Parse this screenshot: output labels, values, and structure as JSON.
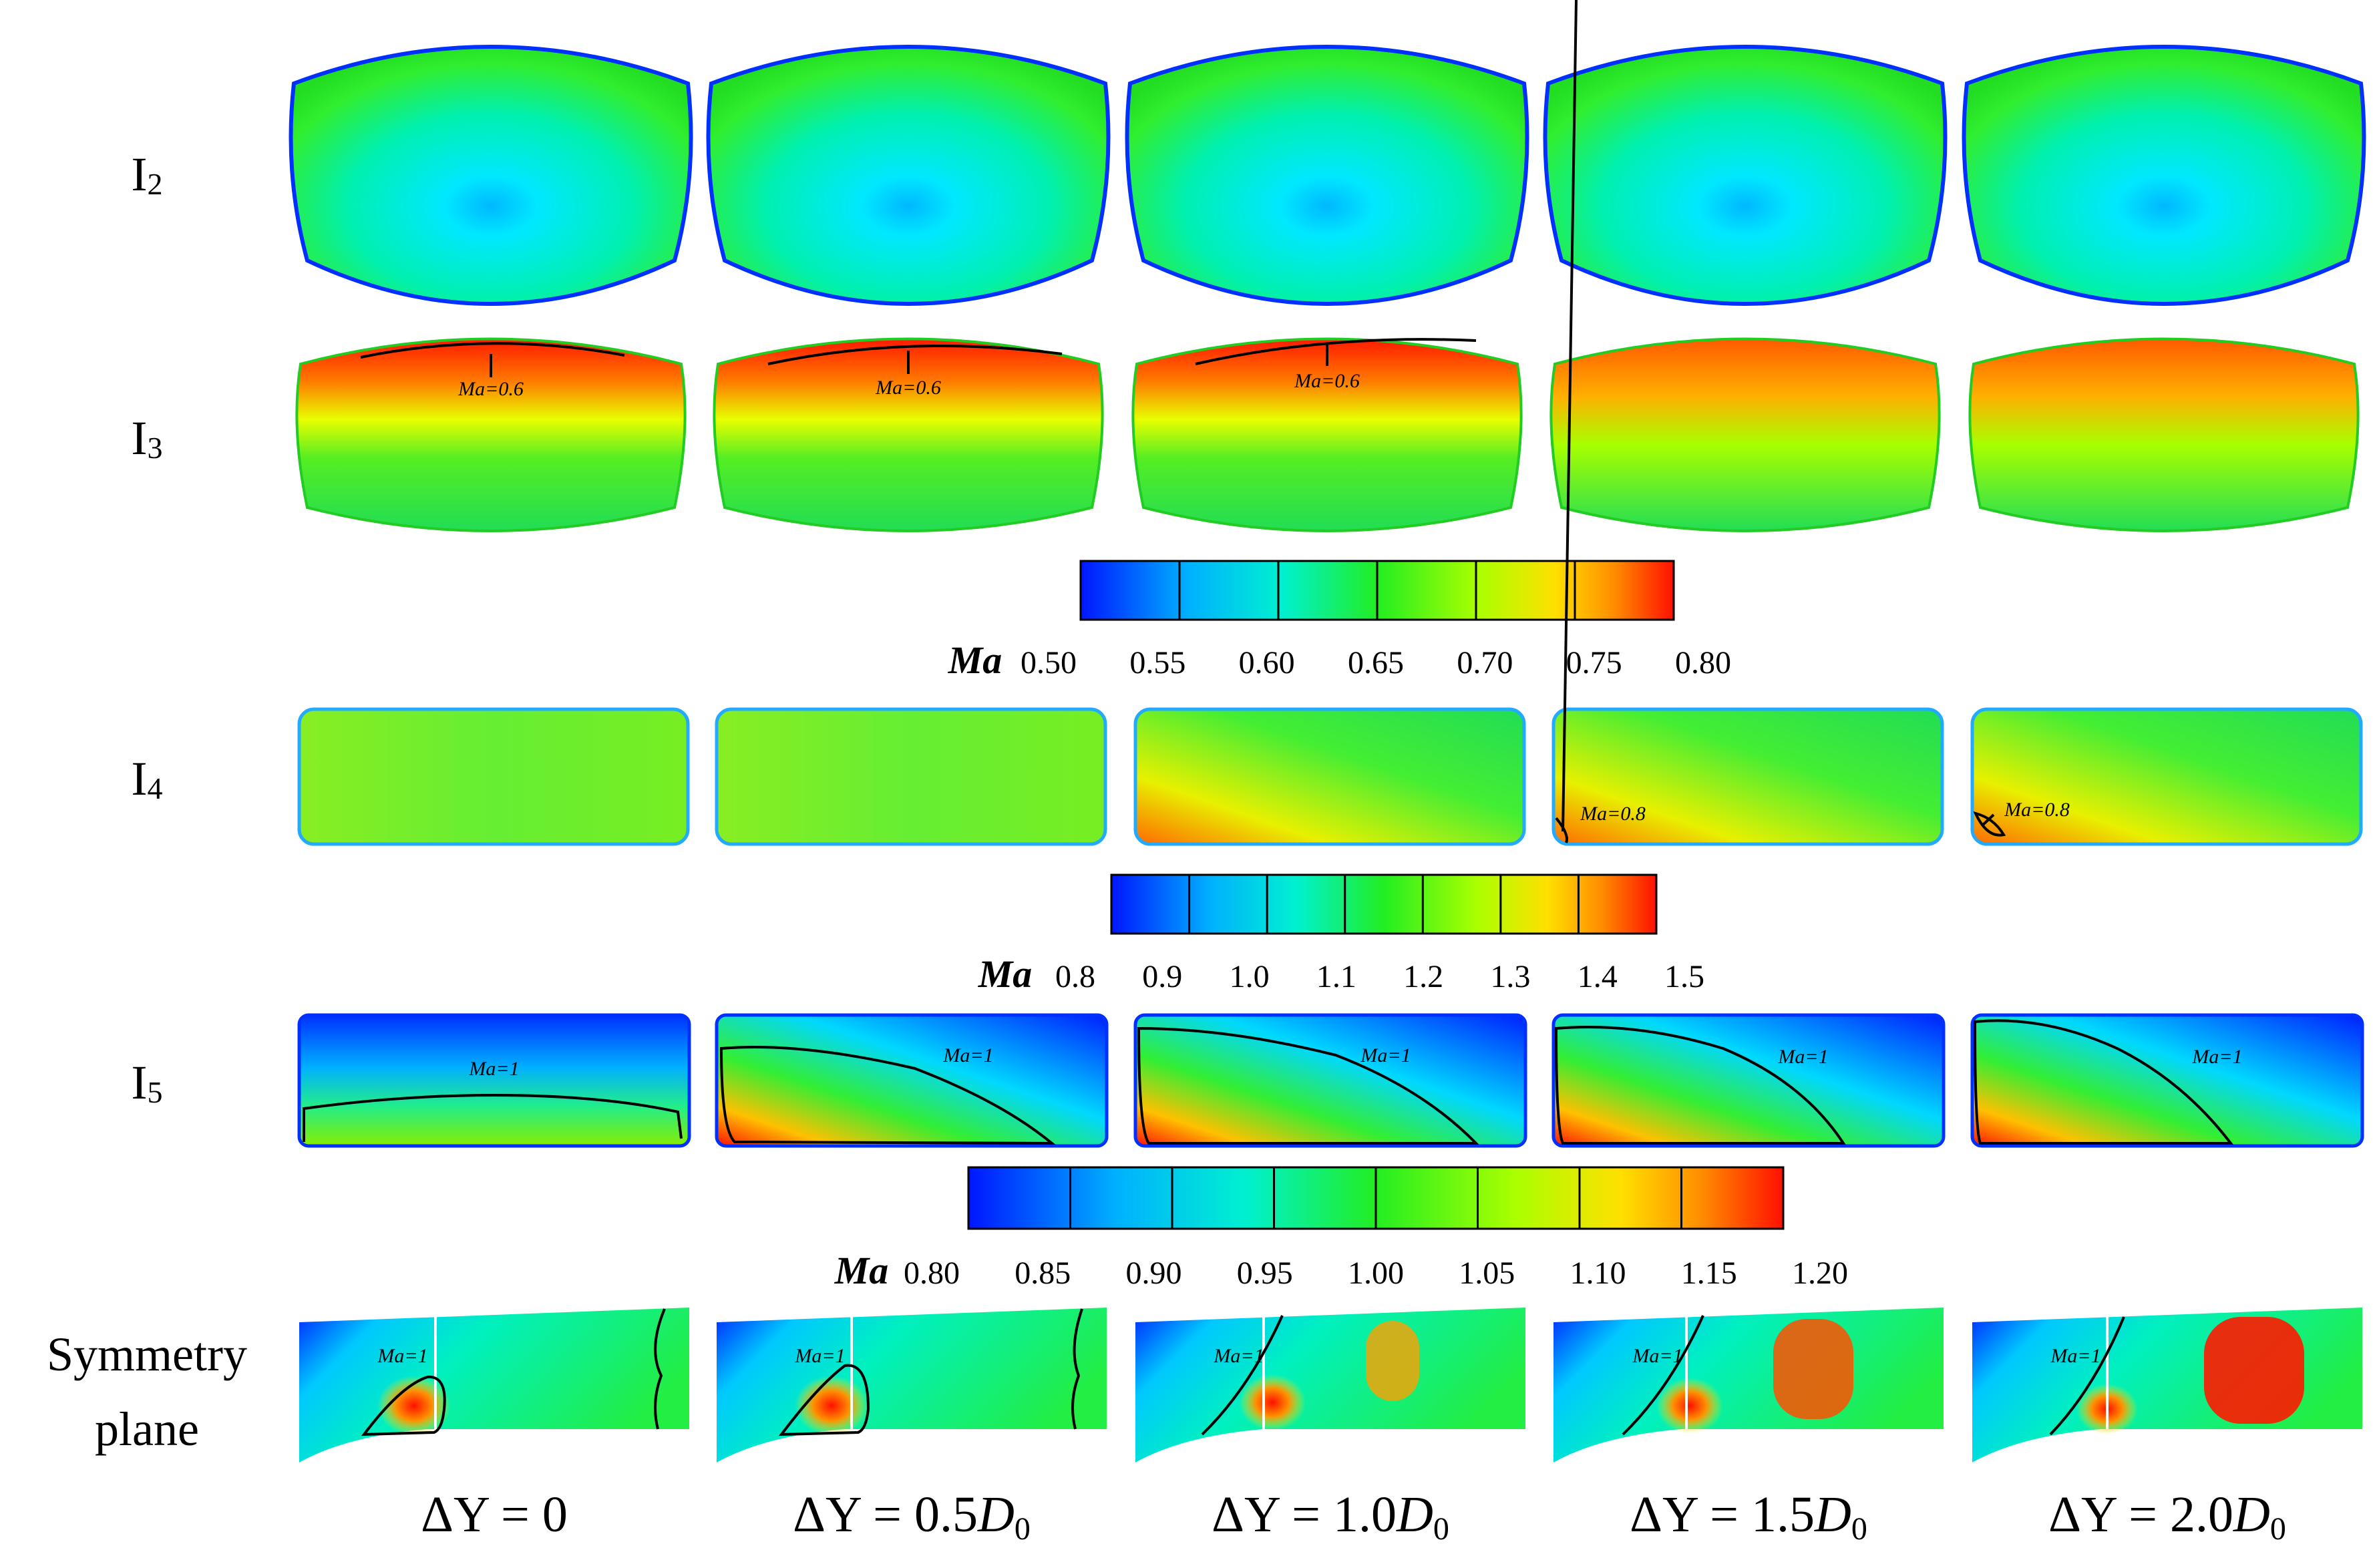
{
  "rows": [
    {
      "id": "I2",
      "main": "I",
      "sub": "2"
    },
    {
      "id": "I3",
      "main": "I",
      "sub": "3"
    },
    {
      "id": "I4",
      "main": "I",
      "sub": "4"
    },
    {
      "id": "I5",
      "main": "I",
      "sub": "5"
    },
    {
      "id": "sym",
      "line1": "Symmetry",
      "line2": "plane"
    }
  ],
  "columns": [
    {
      "prefix": "ΔY = ",
      "value": "0",
      "d": ""
    },
    {
      "prefix": "ΔY = ",
      "value": "0.5",
      "d": "D",
      "dsub": "0"
    },
    {
      "prefix": "ΔY = ",
      "value": "1.0",
      "d": "D",
      "dsub": "0"
    },
    {
      "prefix": "ΔY = ",
      "value": "1.5",
      "d": "D",
      "dsub": "0"
    },
    {
      "prefix": "ΔY = ",
      "value": "2.0",
      "d": "D",
      "dsub": "0"
    }
  ],
  "colorbars": [
    {
      "name": "Ma",
      "ticks": [
        "0.50",
        "0.55",
        "0.60",
        "0.65",
        "0.70",
        "0.75",
        "0.80"
      ]
    },
    {
      "name": "Ma",
      "ticks": [
        "0.8",
        "0.9",
        "1.0",
        "1.1",
        "1.2",
        "1.3",
        "1.4",
        "1.5"
      ]
    },
    {
      "name": "Ma",
      "ticks": [
        "0.80",
        "0.85",
        "0.90",
        "0.95",
        "1.00",
        "1.05",
        "1.10",
        "1.15",
        "1.20"
      ]
    }
  ],
  "annotations": {
    "i3": "Ma=0.6",
    "i4": "Ma=0.8",
    "i5": "Ma=1",
    "sym": "Ma=1"
  },
  "colors": {
    "blue": "#0a2cff",
    "cyan": "#00e0ff",
    "green": "#22ee22",
    "yellow": "#f2ff00",
    "orange": "#ff9a00",
    "red": "#ff1200"
  }
}
